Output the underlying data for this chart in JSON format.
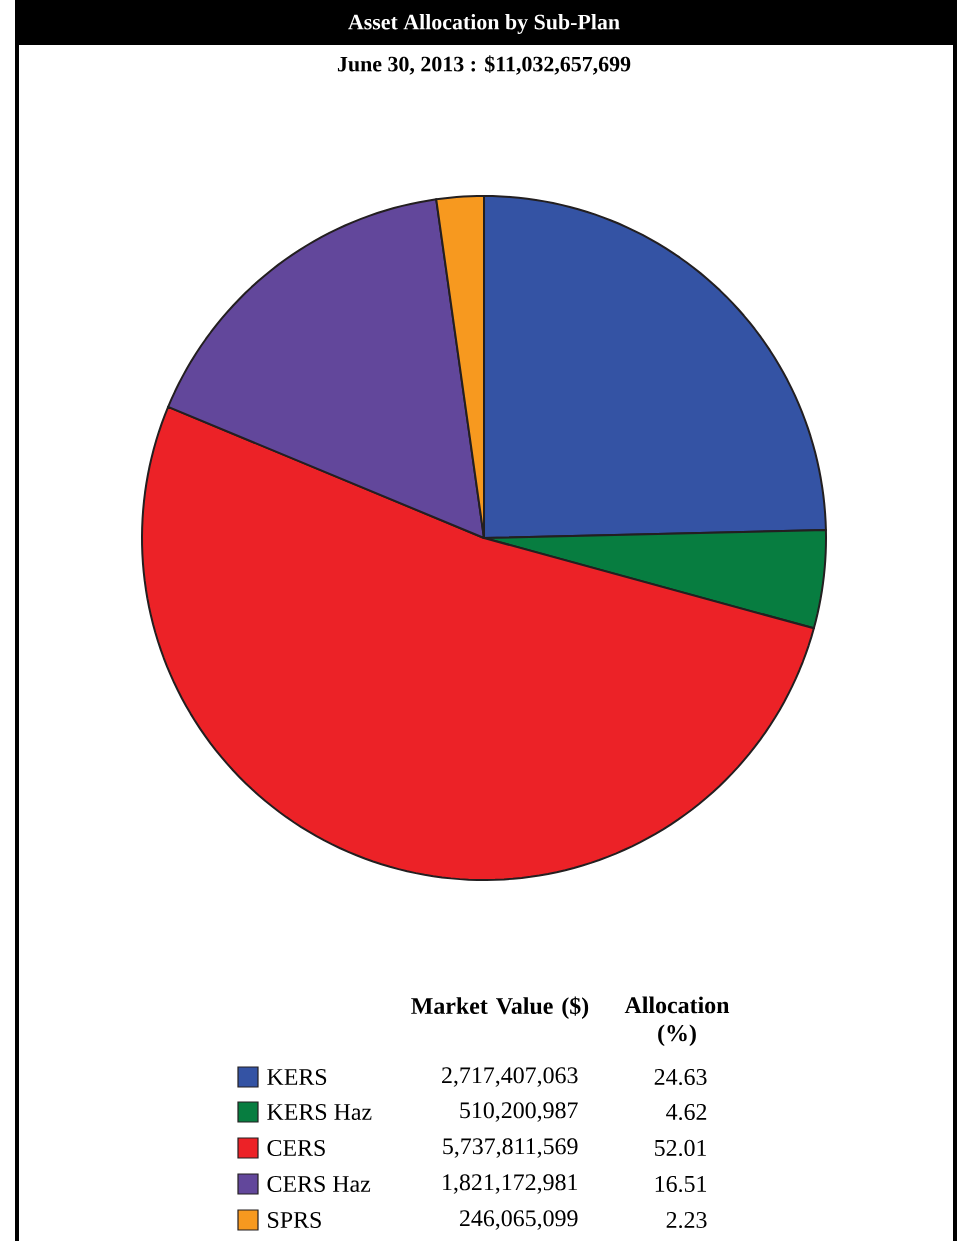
{
  "chart_data": {
    "type": "pie",
    "title": "Asset Allocation by Sub-Plan",
    "subtitle": "June 30, 2013 : $11,032,657,699",
    "categories": [
      "KERS",
      "KERS Haz",
      "CERS",
      "CERS Haz",
      "SPRS"
    ],
    "colors": [
      "#3453a4",
      "#077d40",
      "#ec2227",
      "#62479b",
      "#f7991f"
    ],
    "values": [
      2717407063,
      510200987,
      5737811569,
      1821172981,
      246065099
    ],
    "value_labels": [
      "2,717,407,063",
      "510,200,987",
      "5,737,811,569",
      "1,821,172,981",
      "246,065,099"
    ],
    "annotations": [
      "Market Value ($)",
      "Allocation (%)",
      "24.63",
      "4.62",
      "52.01",
      "16.51",
      "2.23"
    ],
    "legend": "bottom"
  }
}
